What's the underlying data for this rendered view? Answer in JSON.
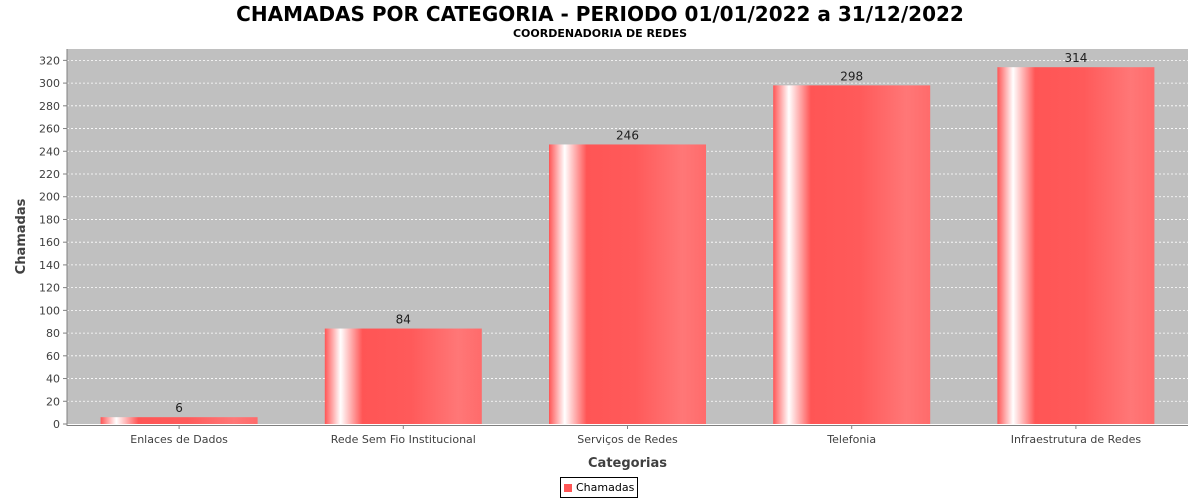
{
  "chart_data": {
    "type": "bar",
    "title": "CHAMADAS POR CATEGORIA - PERIODO 01/01/2022 a 31/12/2022",
    "subtitle": "COORDENADORIA DE REDES",
    "xlabel": "Categorias",
    "ylabel": "Chamadas",
    "categories": [
      "Enlaces de Dados",
      "Rede Sem Fio Institucional",
      "Serviços de Redes",
      "Telefonia",
      "Infraestrutura de Redes"
    ],
    "series": [
      {
        "name": "Chamadas",
        "values": [
          6,
          84,
          246,
          298,
          314
        ],
        "color": "#ff5555"
      }
    ],
    "ylim": [
      0,
      330
    ],
    "yticks": [
      0,
      20,
      40,
      60,
      80,
      100,
      120,
      140,
      160,
      180,
      200,
      220,
      240,
      260,
      280,
      300,
      320
    ],
    "grid": true,
    "legend_position": "bottom-center",
    "plot_background": "#c0c0c0"
  }
}
